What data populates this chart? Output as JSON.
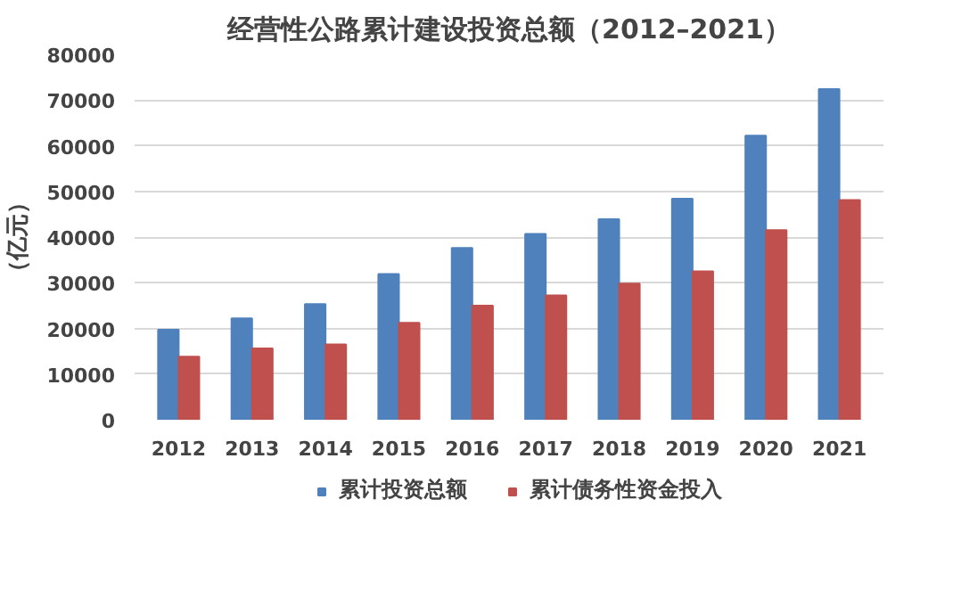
{
  "chart_data": {
    "type": "bar",
    "title": "经营性公路累计建设投资总额（2012–2021）",
    "ylabel": "（亿元）",
    "categories": [
      "2012",
      "2013",
      "2014",
      "2015",
      "2016",
      "2017",
      "2018",
      "2019",
      "2020",
      "2021"
    ],
    "series": [
      {
        "name": "累计投资总额",
        "color": "#4f81bd",
        "values": [
          19700,
          22200,
          25300,
          31900,
          37600,
          40700,
          43900,
          48400,
          62200,
          72400
        ]
      },
      {
        "name": "累计债务性资金投入",
        "color": "#c0504d",
        "values": [
          13800,
          15600,
          16500,
          21200,
          25000,
          27200,
          29800,
          32500,
          41500,
          48100
        ]
      }
    ],
    "ylim": [
      0,
      80000
    ],
    "yticks": [
      0,
      10000,
      20000,
      30000,
      40000,
      50000,
      60000,
      70000,
      80000
    ],
    "grid": "y",
    "legend": "bottom"
  }
}
